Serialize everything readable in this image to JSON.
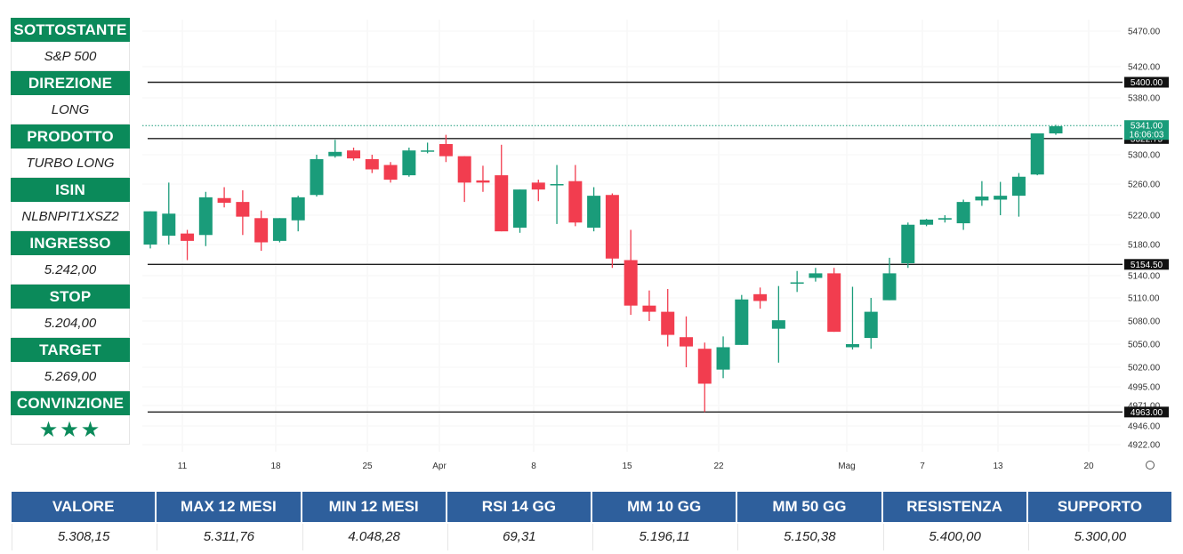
{
  "info_panel": {
    "accent": "#0b8a5a",
    "items": [
      {
        "label": "SOTTOSTANTE",
        "value": "S&P 500"
      },
      {
        "label": "DIREZIONE",
        "value": "LONG"
      },
      {
        "label": "PRODOTTO",
        "value": "TURBO LONG"
      },
      {
        "label": "ISIN",
        "value": "NLBNPIT1XSZ2"
      },
      {
        "label": "INGRESSO",
        "value": "5.242,00"
      },
      {
        "label": "STOP",
        "value": "5.204,00"
      },
      {
        "label": "TARGET",
        "value": "5.269,00"
      },
      {
        "label": "CONVINZIONE",
        "value": "★★★"
      }
    ]
  },
  "stats": {
    "header_color": "#2e5f9c",
    "columns": [
      {
        "label": "VALORE",
        "value": "5.308,15"
      },
      {
        "label": "MAX 12 MESI",
        "value": "5.311,76"
      },
      {
        "label": "MIN 12 MESI",
        "value": "4.048,28"
      },
      {
        "label": "RSI 14 GG",
        "value": "69,31"
      },
      {
        "label": "MM 10 GG",
        "value": "5.196,11"
      },
      {
        "label": "MM 50 GG",
        "value": "5.150,38"
      },
      {
        "label": "RESISTENZA",
        "value": "5.400,00"
      },
      {
        "label": "SUPPORTO",
        "value": "5.300,00"
      }
    ]
  },
  "chart_data": {
    "type": "candlestick",
    "up_color": "#1a9c7a",
    "down_color": "#f23d4f",
    "y_ticks": [
      "5470.00",
      "5420.00",
      "5380.00",
      "5300.00",
      "5260.00",
      "5220.00",
      "5180.00",
      "5140.00",
      "5110.00",
      "5080.00",
      "5050.00",
      "5020.00",
      "4995.00",
      "4971.00",
      "4946.00",
      "4922.00"
    ],
    "x_ticks": [
      "11",
      "18",
      "25",
      "Apr",
      "8",
      "15",
      "22",
      "Mag",
      "7",
      "13",
      "20"
    ],
    "horizontal_levels": [
      {
        "value": 5400,
        "label": "5400.00"
      },
      {
        "value": 5322.75,
        "label": "5322.75"
      },
      {
        "value": 5154.5,
        "label": "5154.50"
      },
      {
        "value": 4963,
        "label": "4963.00"
      }
    ],
    "current_price": {
      "value": 5341,
      "label": "5341.00",
      "countdown": "16:06:03",
      "color": "#1a9c7a"
    },
    "candles": [
      {
        "date": "Mar 8",
        "o": 5180,
        "h": 5225,
        "l": 5175,
        "c": 5225
      },
      {
        "date": "Mar 11",
        "o": 5192,
        "h": 5262,
        "l": 5180,
        "c": 5222
      },
      {
        "date": "Mar 12",
        "o": 5195,
        "h": 5200,
        "l": 5160,
        "c": 5185
      },
      {
        "date": "Mar 13",
        "o": 5193,
        "h": 5250,
        "l": 5178,
        "c": 5243
      },
      {
        "date": "Mar 14",
        "o": 5242,
        "h": 5256,
        "l": 5230,
        "c": 5236
      },
      {
        "date": "Mar 15",
        "o": 5237,
        "h": 5252,
        "l": 5193,
        "c": 5218
      },
      {
        "date": "Mar 18",
        "o": 5216,
        "h": 5226,
        "l": 5172,
        "c": 5183
      },
      {
        "date": "Mar 19",
        "o": 5185,
        "h": 5216,
        "l": 5183,
        "c": 5216
      },
      {
        "date": "Mar 20",
        "o": 5213,
        "h": 5245,
        "l": 5198,
        "c": 5243
      },
      {
        "date": "Mar 21",
        "o": 5246,
        "h": 5300,
        "l": 5244,
        "c": 5294
      },
      {
        "date": "Mar 22",
        "o": 5298,
        "h": 5321,
        "l": 5296,
        "c": 5304
      },
      {
        "date": "Mar 25",
        "o": 5306,
        "h": 5310,
        "l": 5292,
        "c": 5295
      },
      {
        "date": "Mar 26",
        "o": 5294,
        "h": 5300,
        "l": 5275,
        "c": 5280
      },
      {
        "date": "Mar 27",
        "o": 5286,
        "h": 5290,
        "l": 5262,
        "c": 5266
      },
      {
        "date": "Mar 28",
        "o": 5272,
        "h": 5310,
        "l": 5270,
        "c": 5306
      },
      {
        "date": "Apr 1",
        "o": 5306,
        "h": 5317,
        "l": 5302,
        "c": 5306
      },
      {
        "date": "Apr 2",
        "o": 5315,
        "h": 5328,
        "l": 5290,
        "c": 5298
      },
      {
        "date": "Apr 3",
        "o": 5298,
        "h": 5298,
        "l": 5237,
        "c": 5262
      },
      {
        "date": "Apr 4",
        "o": 5265,
        "h": 5285,
        "l": 5250,
        "c": 5262
      },
      {
        "date": "Apr 5",
        "o": 5272,
        "h": 5314,
        "l": 5198,
        "c": 5198
      },
      {
        "date": "Apr 8",
        "o": 5203,
        "h": 5253,
        "l": 5196,
        "c": 5253
      },
      {
        "date": "Apr 9",
        "o": 5262,
        "h": 5266,
        "l": 5238,
        "c": 5253
      },
      {
        "date": "Apr 10",
        "o": 5260,
        "h": 5286,
        "l": 5208,
        "c": 5260
      },
      {
        "date": "Apr 11",
        "o": 5264,
        "h": 5286,
        "l": 5205,
        "c": 5210
      },
      {
        "date": "Apr 12",
        "o": 5203,
        "h": 5256,
        "l": 5198,
        "c": 5245
      },
      {
        "date": "Apr 15",
        "o": 5246,
        "h": 5248,
        "l": 5150,
        "c": 5162
      },
      {
        "date": "Apr 16",
        "o": 5160,
        "h": 5200,
        "l": 5088,
        "c": 5100
      },
      {
        "date": "Apr 17",
        "o": 5100,
        "h": 5120,
        "l": 5080,
        "c": 5092
      },
      {
        "date": "Apr 18",
        "o": 5092,
        "h": 5122,
        "l": 5047,
        "c": 5062
      },
      {
        "date": "Apr 19",
        "o": 5059,
        "h": 5086,
        "l": 5020,
        "c": 5047
      },
      {
        "date": "Apr 22",
        "o": 5044,
        "h": 5052,
        "l": 4963,
        "c": 4999
      },
      {
        "date": "Apr 23",
        "o": 5017,
        "h": 5060,
        "l": 5006,
        "c": 5046
      },
      {
        "date": "Apr 24",
        "o": 5049,
        "h": 5114,
        "l": 5049,
        "c": 5108
      },
      {
        "date": "Apr 25",
        "o": 5115,
        "h": 5124,
        "l": 5096,
        "c": 5106
      },
      {
        "date": "Apr 26",
        "o": 5070,
        "h": 5126,
        "l": 5026,
        "c": 5081
      },
      {
        "date": "Apr 29",
        "o": 5131,
        "h": 5146,
        "l": 5118,
        "c": 5131
      },
      {
        "date": "Apr 30",
        "o": 5137,
        "h": 5150,
        "l": 5132,
        "c": 5143
      },
      {
        "date": "May 1",
        "o": 5143,
        "h": 5150,
        "l": 5066,
        "c": 5066
      },
      {
        "date": "May 2",
        "o": 5046,
        "h": 5125,
        "l": 5043,
        "c": 5050
      },
      {
        "date": "May 3",
        "o": 5058,
        "h": 5110,
        "l": 5044,
        "c": 5092
      },
      {
        "date": "May 6",
        "o": 5107,
        "h": 5163,
        "l": 5107,
        "c": 5143
      },
      {
        "date": "May 7",
        "o": 5156,
        "h": 5210,
        "l": 5150,
        "c": 5207
      },
      {
        "date": "May 8",
        "o": 5207,
        "h": 5215,
        "l": 5205,
        "c": 5214
      },
      {
        "date": "May 9",
        "o": 5214,
        "h": 5220,
        "l": 5210,
        "c": 5216
      },
      {
        "date": "May 10",
        "o": 5209,
        "h": 5240,
        "l": 5200,
        "c": 5237
      },
      {
        "date": "May 13",
        "o": 5239,
        "h": 5264,
        "l": 5232,
        "c": 5244
      },
      {
        "date": "May 14",
        "o": 5240,
        "h": 5263,
        "l": 5220,
        "c": 5245
      },
      {
        "date": "May 15",
        "o": 5245,
        "h": 5275,
        "l": 5218,
        "c": 5270
      },
      {
        "date": "May 16",
        "o": 5273,
        "h": 5330,
        "l": 5272,
        "c": 5330
      },
      {
        "date": "May 17",
        "o": 5330,
        "h": 5342,
        "l": 5328,
        "c": 5340
      }
    ]
  }
}
